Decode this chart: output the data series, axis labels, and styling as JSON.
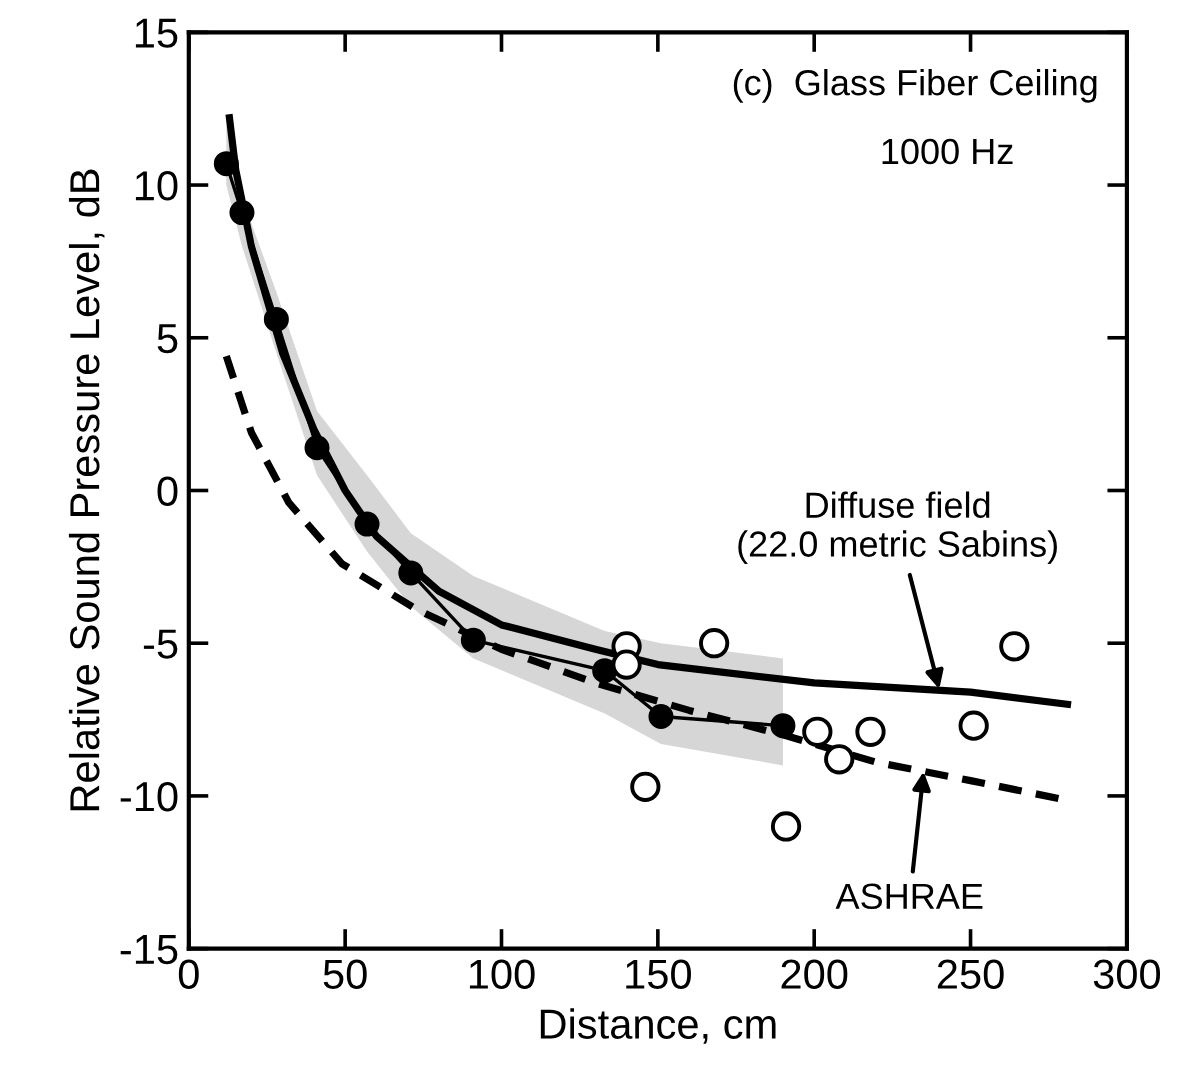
{
  "chart_data": {
    "type": "line",
    "xlabel": "Distance, cm",
    "ylabel": "Relative Sound Pressure Level, dB",
    "xlim": [
      0,
      300
    ],
    "ylim": [
      -15,
      15
    ],
    "xticks": [
      0,
      50,
      100,
      150,
      200,
      250,
      300
    ],
    "yticks": [
      -15,
      -10,
      -5,
      0,
      5,
      10,
      15
    ],
    "grid": false,
    "legend": false,
    "series": [
      {
        "color": "#000000",
        "marker": "circle",
        "line_style": "solid",
        "x": [
          12,
          17,
          28,
          41,
          57,
          71,
          91,
          133,
          151,
          190
        ],
        "values": [
          10.7,
          9.1,
          5.6,
          1.4,
          -1.1,
          -2.7,
          -4.9,
          -5.9,
          -7.4,
          -7.7
        ],
        "lower": [
          10,
          8,
          4.5,
          0.5,
          -2,
          -3.8,
          -5.5,
          -7.3,
          -8.3,
          -9
        ],
        "upper": [
          12,
          9.6,
          6.5,
          2.6,
          0.5,
          -1.4,
          -2.8,
          -4.6,
          -5,
          -5.5
        ]
      },
      {
        "type": "scatter",
        "color": "#000000",
        "marker": "circle",
        "x": [
          140,
          140,
          168,
          146,
          191,
          201,
          208,
          218,
          251,
          264
        ],
        "values": [
          -5.1,
          -5.7,
          -5.0,
          -9.7,
          -11.0,
          -7.9,
          -8.8,
          -7.9,
          -7.7,
          -5.1
        ]
      },
      {
        "color": "#000000",
        "marker": "none",
        "line_style": "solid",
        "x": [
          13,
          15,
          20,
          30,
          40,
          50,
          60,
          80,
          100,
          130,
          150,
          200,
          250,
          281
        ],
        "values": [
          12.2,
          10.5,
          8,
          4.5,
          2,
          0,
          -1.5,
          -3.3,
          -4.4,
          -5.2,
          -5.7,
          -6.3,
          -6.6,
          -7.0
        ]
      },
      {
        "color": "#000000",
        "marker": "none",
        "line_style": "dashed",
        "x": [
          12,
          20,
          32,
          49,
          73,
          100,
          130,
          160,
          190,
          220,
          250,
          279
        ],
        "values": [
          4.4,
          1.9,
          -0.4,
          -2.4,
          -3.9,
          -5.2,
          -6.3,
          -7.2,
          -8.0,
          -8.9,
          -9.5,
          -10.1
        ]
      }
    ],
    "annotations": [
      "(c)  Glass Fiber Ceiling",
      "1000 Hz",
      {
        "text": "Diffuse field\n(22.0 metric Sabins)",
        "x": 240,
        "y": -6.5
      },
      {
        "text": "ASHRAE",
        "x": 235,
        "y": -9.2
      }
    ]
  }
}
